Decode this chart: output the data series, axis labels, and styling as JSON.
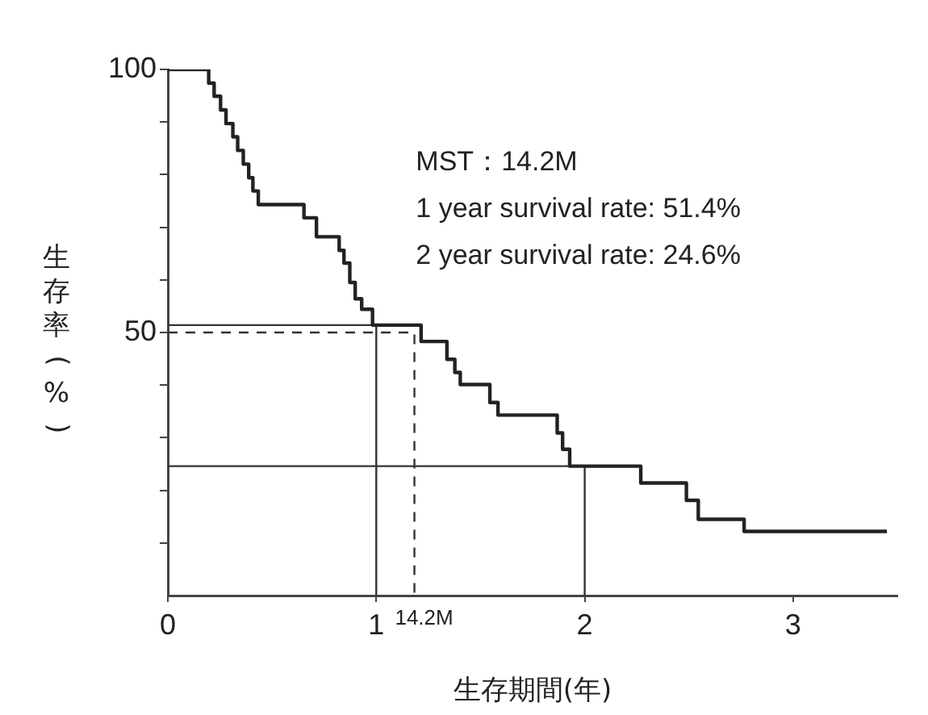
{
  "chart_data": {
    "type": "step",
    "xlabel": "生存期間(年)",
    "ylabel": "生存率(%)",
    "annotations": [
      "MST：14.2M",
      "1 year survival rate: 51.4%",
      "2 year survival rate: 24.6%",
      {
        "text": "14.2M",
        "x": 1.183,
        "y": 0
      }
    ],
    "xlim": [
      0,
      3.5
    ],
    "xticks": [
      0,
      1,
      2,
      3
    ],
    "ylim": [
      0,
      100
    ],
    "yticks": [
      {
        "value": 10,
        "label": null
      },
      {
        "value": 20,
        "label": null
      },
      {
        "value": 30,
        "label": null
      },
      {
        "value": 40,
        "label": null
      },
      50,
      {
        "value": 60,
        "label": null
      },
      {
        "value": 70,
        "label": null
      },
      {
        "value": 80,
        "label": null
      },
      {
        "value": 90,
        "label": null
      },
      100
    ],
    "grid": false,
    "legend": false,
    "marker": "none",
    "series": [
      {
        "color": "#222222",
        "x": [
          0,
          0.196,
          0.222,
          0.253,
          0.279,
          0.312,
          0.335,
          0.362,
          0.388,
          0.408,
          0.434,
          0.653,
          0.713,
          0.822,
          0.845,
          0.873,
          0.899,
          0.93,
          0.982,
          1.215,
          1.339,
          1.377,
          1.403,
          1.545,
          1.584,
          1.868,
          1.894,
          1.928,
          2.269,
          2.488,
          2.545,
          2.765,
          3.45
        ],
        "values": [
          100,
          97.4,
          94.9,
          92.3,
          89.7,
          87.2,
          84.6,
          82,
          79.4,
          76.9,
          74.3,
          71.8,
          68.2,
          65.6,
          63.2,
          59.5,
          56.4,
          54.4,
          51.4,
          48.3,
          44.9,
          42.4,
          40.1,
          36.7,
          34.3,
          30.9,
          27.8,
          24.6,
          21.4,
          18.1,
          14.5,
          12.2,
          12.2
        ]
      },
      {
        "type": "line",
        "color": "#333333",
        "line_style": "solid",
        "x": [
          0,
          1,
          1
        ],
        "values": [
          51.4,
          51.4,
          0
        ]
      },
      {
        "type": "line",
        "color": "#333333",
        "line_style": "dashed",
        "x": [
          0,
          1.183,
          1.183
        ],
        "values": [
          50,
          50,
          0
        ]
      },
      {
        "type": "line",
        "color": "#333333",
        "line_style": "solid",
        "x": [
          0,
          2,
          2
        ],
        "values": [
          24.6,
          24.6,
          0
        ]
      }
    ]
  }
}
